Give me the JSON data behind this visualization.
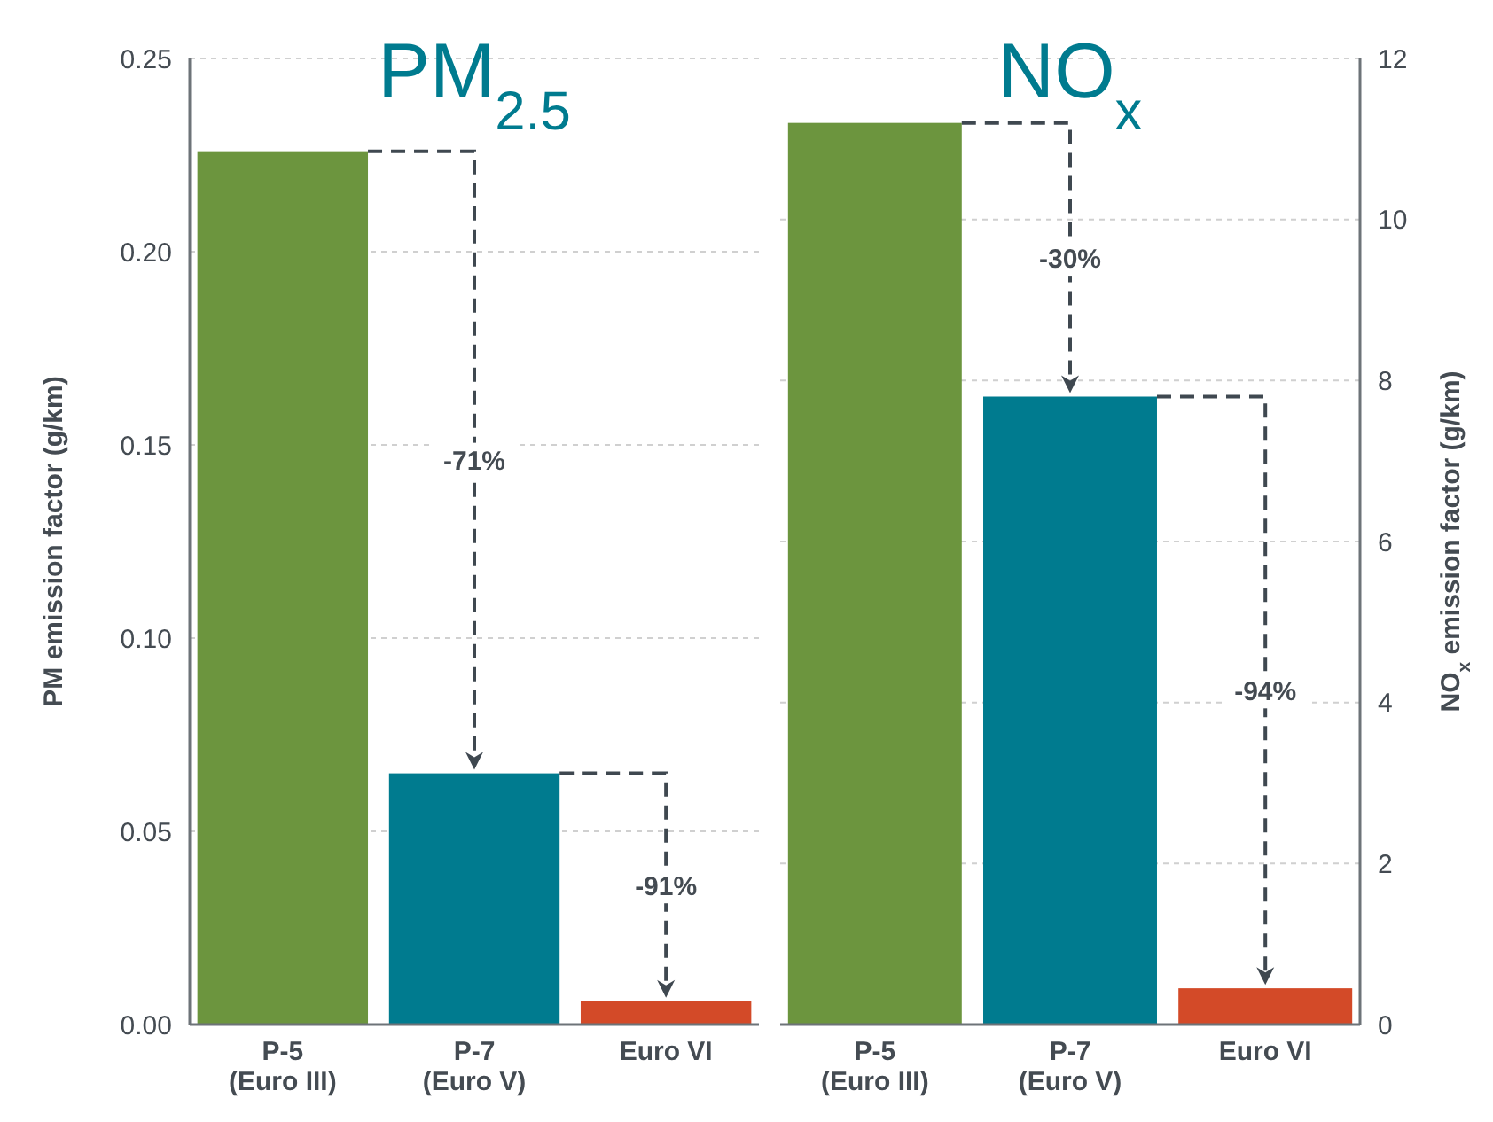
{
  "chart_data": [
    {
      "type": "bar",
      "title": "PM$_{2.5}$",
      "ylabel": "PM emission factor (g/km)",
      "categories": [
        "P-5 (Euro III)",
        "P-7 (Euro V)",
        "Euro VI"
      ],
      "values": [
        0.226,
        0.065,
        0.006
      ],
      "colors": [
        "#6c953e",
        "#007b8f",
        "#d34a28"
      ],
      "ylim": [
        0,
        0.25
      ],
      "yticks": [
        {
          "value": 0,
          "label": "0.00"
        },
        {
          "value": 0.05,
          "label": "0.05"
        },
        {
          "value": 0.1,
          "label": "0.10"
        },
        {
          "value": 0.15,
          "label": "0.15"
        },
        {
          "value": 0.2,
          "label": "0.20"
        },
        {
          "value": 0.25,
          "label": "0.25"
        }
      ],
      "grid": "y",
      "annotations": [
        "-71%",
        "-91%"
      ]
    },
    {
      "type": "bar",
      "title": "NO$_{x}$",
      "y2label": "NO$_{x}$ emission factor (g/km)",
      "categories": [
        "P-5 (Euro III)",
        "P-7 (Euro V)",
        "Euro VI"
      ],
      "series": [
        {
          "axis": "y2",
          "values": [
            11.2,
            7.8,
            0.45
          ]
        }
      ],
      "colors": [
        "#6c953e",
        "#007b8f",
        "#d34a28"
      ],
      "y2lim": [
        0,
        12
      ],
      "y2ticks": [
        0,
        2,
        4,
        6,
        8,
        10,
        12
      ],
      "grid": "y",
      "annotations": [
        "-30%",
        "-94%"
      ]
    }
  ]
}
